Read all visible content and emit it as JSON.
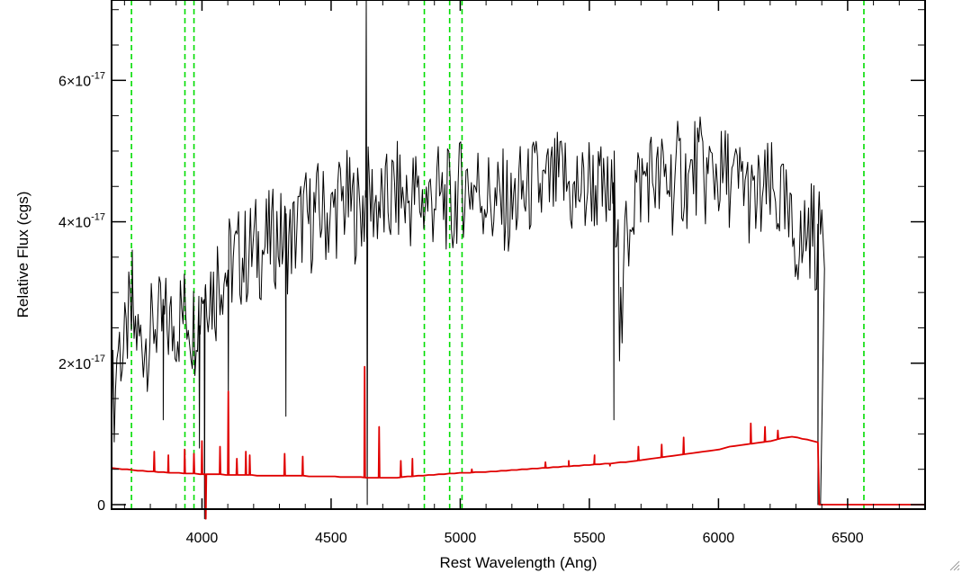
{
  "chart_data": {
    "type": "line",
    "title": "",
    "xlabel": "Rest Wavelength (Ang)",
    "ylabel": "Relative Flux (cgs)",
    "xlim": [
      3650,
      6800
    ],
    "ylim": [
      0,
      7.2e-17
    ],
    "x_ticks": [
      4000,
      4500,
      5000,
      5500,
      6000,
      6500
    ],
    "x_tick_labels": [
      "4000",
      "4500",
      "5000",
      "5500",
      "6000",
      "6500"
    ],
    "y_ticks": [
      {
        "value": 0,
        "mantissa": "0",
        "exponent": ""
      },
      {
        "value": 2e-17,
        "mantissa": "2×10",
        "exponent": "-17"
      },
      {
        "value": 4e-17,
        "mantissa": "4×10",
        "exponent": "-17"
      },
      {
        "value": 6e-17,
        "mantissa": "6×10",
        "exponent": "-17"
      }
    ],
    "grid": false,
    "line_markers_x": [
      3727,
      3934,
      3969,
      4861,
      4959,
      5007,
      6563
    ],
    "series": [
      {
        "color": "#000000",
        "x_start": 3650,
        "x_end": 6395,
        "step": 20,
        "values": [
          1.55e-17,
          2.25e-17,
          2.15e-17,
          2.55e-17,
          2.45e-17,
          2.3e-17,
          2.35e-17,
          2.4e-17,
          2.6e-17,
          2.5e-17,
          2.55e-17,
          2.5e-17,
          2.6e-17,
          2.7e-17,
          2.75e-17,
          2.55e-17,
          2.8e-17,
          3.1e-17,
          3.15e-17,
          3e-17,
          3.3e-17,
          3.3e-17,
          3.4e-17,
          3.45e-17,
          3.5e-17,
          3.5e-17,
          3.6e-17,
          3.65e-17,
          3.6e-17,
          3.7e-17,
          3.75e-17,
          3.8e-17,
          3.75e-17,
          3.7e-17,
          3.8e-17,
          3.95e-17,
          4.05e-17,
          4e-17,
          4.1e-17,
          4.15e-17,
          4.1e-17,
          4.05e-17,
          4.2e-17,
          4.3e-17,
          4.3e-17,
          4.2e-17,
          4.15e-17,
          4.2e-17,
          4.35e-17,
          4.3e-17,
          4.25e-17,
          4.2e-17,
          4.25e-17,
          4.4e-17,
          4.4e-17,
          4.3e-17,
          4.3e-17,
          4.4e-17,
          4.3e-17,
          4.3e-17,
          4.3e-17,
          4.4e-17,
          4.3e-17,
          4.3e-17,
          4.1e-17,
          4.4e-17,
          4.5e-17,
          4.55e-17,
          4.5e-17,
          4.5e-17,
          4.4e-17,
          4.35e-17,
          4.2e-17,
          4.25e-17,
          4.3e-17,
          4.1e-17,
          4.3e-17,
          4.4e-17,
          4.35e-17,
          4.5e-17,
          4.5e-17,
          4.4e-17,
          4.45e-17,
          4.5e-17,
          4.55e-17,
          4.6e-17,
          4.5e-17,
          4.3e-17,
          4.5e-17,
          4.4e-17,
          4.6e-17,
          4.5e-17,
          4.4e-17,
          4.3e-17,
          4.3e-17,
          4.35e-17,
          2.6e-17,
          3.8e-17,
          4.3e-17,
          4.5e-17,
          4.55e-17,
          4.7e-17,
          4.65e-17,
          4.5e-17,
          4.6e-17,
          4.6e-17,
          4.5e-17,
          4.7e-17,
          4.6e-17,
          4.55e-17,
          4.8e-17,
          4.75e-17,
          4.6e-17,
          4.7e-17,
          4.7e-17,
          4.6e-17,
          4.65e-17,
          4.5e-17,
          4.5e-17,
          4.6e-17,
          4.4e-17,
          4.2e-17,
          4.3e-17,
          4.35e-17,
          4.4e-17,
          4.3e-17,
          4.3e-17,
          4.1e-17,
          3.8e-17,
          3.8e-17,
          3.6e-17,
          3.9e-17,
          3.9e-17,
          3.7e-17,
          4e-17
        ],
        "spikes": [
          {
            "x": 3730,
            "y": 3.6e-17
          },
          {
            "x": 3850,
            "y": 1.2e-17
          },
          {
            "x": 3990,
            "y": 8e-18
          },
          {
            "x": 4010,
            "y": -2e-18
          },
          {
            "x": 4102,
            "y": 1.4e-17
          },
          {
            "x": 4325,
            "y": 1.25e-17
          },
          {
            "x": 4636,
            "y": 7.2e-17
          },
          {
            "x": 4640,
            "y": 0.0
          },
          {
            "x": 5595,
            "y": 1.2e-17
          },
          {
            "x": 6385,
            "y": 0.0
          }
        ]
      },
      {
        "color": "#e00000",
        "x_start": 3650,
        "x_end": 6385,
        "step": 20,
        "values": [
          5.2e-18,
          5.1e-18,
          5e-18,
          5e-18,
          4.9e-18,
          4.8e-18,
          4.8e-18,
          4.7e-18,
          4.7e-18,
          4.6e-18,
          4.6e-18,
          4.5e-18,
          4.5e-18,
          4.5e-18,
          4.4e-18,
          4.4e-18,
          4.4e-18,
          4.3e-18,
          4.3e-18,
          4.3e-18,
          4.3e-18,
          4.3e-18,
          4.2e-18,
          4.2e-18,
          4.2e-18,
          4.2e-18,
          4.2e-18,
          4.2e-18,
          4.1e-18,
          4.1e-18,
          4.1e-18,
          4.1e-18,
          4.1e-18,
          4.1e-18,
          4.1e-18,
          4.1e-18,
          4.1e-18,
          4.1e-18,
          4e-18,
          4e-18,
          4e-18,
          4e-18,
          4e-18,
          4e-18,
          3.9e-18,
          3.9e-18,
          3.9e-18,
          3.9e-18,
          3.9e-18,
          3.8e-18,
          3.8e-18,
          3.8e-18,
          3.8e-18,
          3.8e-18,
          3.8e-18,
          3.8e-18,
          3.9e-18,
          4e-18,
          4e-18,
          4.1e-18,
          4.1e-18,
          4.2e-18,
          4.2e-18,
          4.3e-18,
          4.3e-18,
          4.4e-18,
          4.4e-18,
          4.5e-18,
          4.5e-18,
          4.5e-18,
          4.6e-18,
          4.6e-18,
          4.6e-18,
          4.7e-18,
          4.7e-18,
          4.8e-18,
          4.8e-18,
          4.9e-18,
          4.9e-18,
          5e-18,
          5e-18,
          5.1e-18,
          5.1e-18,
          5.2e-18,
          5.2e-18,
          5.3e-18,
          5.3e-18,
          5.4e-18,
          5.4e-18,
          5.5e-18,
          5.5e-18,
          5.6e-18,
          5.6e-18,
          5.7e-18,
          5.7e-18,
          5.8e-18,
          5.8e-18,
          5.9e-18,
          6e-18,
          6e-18,
          6.1e-18,
          6.2e-18,
          6.3e-18,
          6.4e-18,
          6.5e-18,
          6.6e-18,
          6.7e-18,
          6.8e-18,
          6.9e-18,
          7e-18,
          7.1e-18,
          7.2e-18,
          7.3e-18,
          7.4e-18,
          7.5e-18,
          7.6e-18,
          7.7e-18,
          7.8e-18,
          8e-18,
          8.2e-18,
          8.3e-18,
          8.4e-18,
          8.5e-18,
          8.6e-18,
          8.7e-18,
          8.8e-18,
          8.9e-18,
          9e-18,
          9.2e-18,
          9.4e-18,
          9.5e-18,
          9.6e-18,
          9.5e-18,
          9.3e-18,
          9.2e-18,
          9e-18,
          8.8e-18
        ],
        "tail_x_end": 6800,
        "spikes": [
          {
            "x": 3815,
            "y": 7.5e-18
          },
          {
            "x": 3870,
            "y": 7e-18
          },
          {
            "x": 3933,
            "y": 7.8e-18
          },
          {
            "x": 3969,
            "y": 7.2e-18
          },
          {
            "x": 4000,
            "y": 9e-18
          },
          {
            "x": 4015,
            "y": -2e-18
          },
          {
            "x": 4070,
            "y": 8.2e-18
          },
          {
            "x": 4102,
            "y": 1.6e-17
          },
          {
            "x": 4135,
            "y": 6.5e-18
          },
          {
            "x": 4170,
            "y": 7.5e-18
          },
          {
            "x": 4185,
            "y": 7e-18
          },
          {
            "x": 4320,
            "y": 7.2e-18
          },
          {
            "x": 4390,
            "y": 6.8e-18
          },
          {
            "x": 4630,
            "y": 1.95e-17
          },
          {
            "x": 4686,
            "y": 1.1e-17
          },
          {
            "x": 4770,
            "y": 6.2e-18
          },
          {
            "x": 4815,
            "y": 6.5e-18
          },
          {
            "x": 5045,
            "y": 5e-18
          },
          {
            "x": 5330,
            "y": 6e-18
          },
          {
            "x": 5420,
            "y": 6.2e-18
          },
          {
            "x": 5520,
            "y": 7e-18
          },
          {
            "x": 5580,
            "y": 5.5e-18
          },
          {
            "x": 5690,
            "y": 8.2e-18
          },
          {
            "x": 5780,
            "y": 8.5e-18
          },
          {
            "x": 5865,
            "y": 9.5e-18
          },
          {
            "x": 6125,
            "y": 1.15e-17
          },
          {
            "x": 6180,
            "y": 1.1e-17
          },
          {
            "x": 6230,
            "y": 1.05e-17
          }
        ]
      }
    ]
  }
}
